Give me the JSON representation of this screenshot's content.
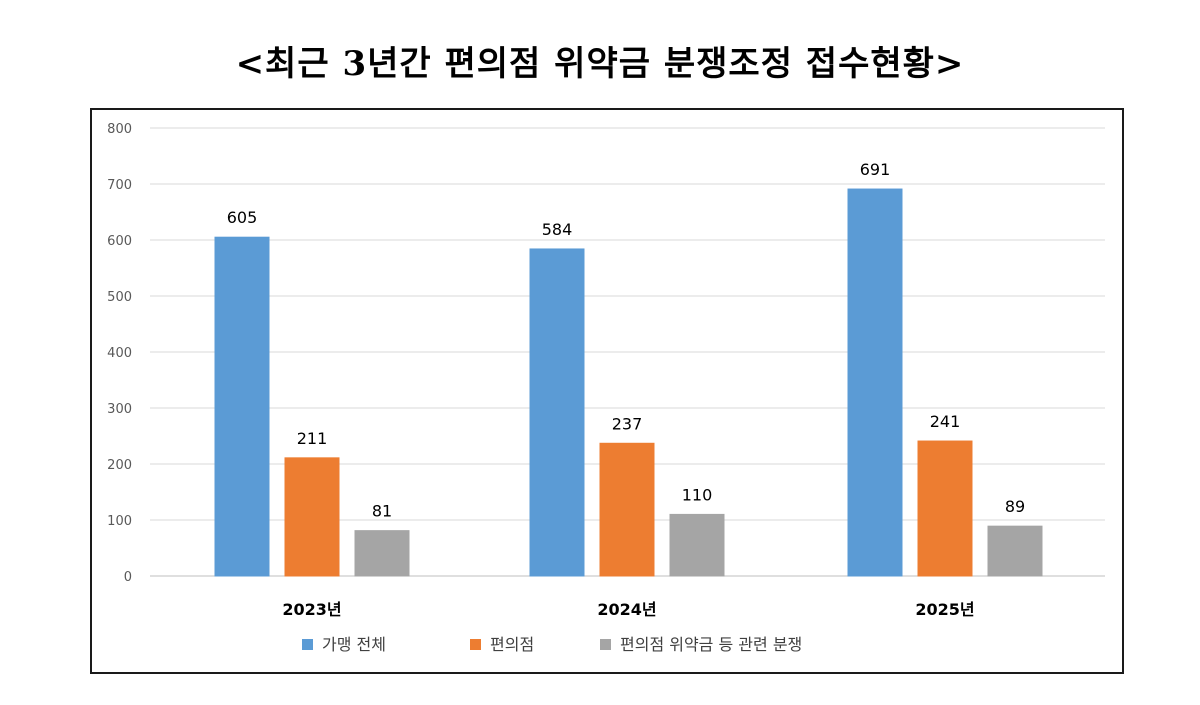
{
  "title": "<최근 3년간 편의점 위약금 분쟁조정 접수현황>",
  "chart_data": {
    "type": "bar",
    "categories": [
      "2023년",
      "2024년",
      "2025년"
    ],
    "series": [
      {
        "name": "가맹 전체",
        "values": [
          605,
          584,
          691
        ],
        "color": "#5b9bd5"
      },
      {
        "name": "편의점",
        "values": [
          211,
          237,
          241
        ],
        "color": "#ed7d31"
      },
      {
        "name": "편의점 위약금 등 관련 분쟁",
        "values": [
          81,
          110,
          89
        ],
        "color": "#a5a5a5"
      }
    ],
    "ylim": [
      0,
      800
    ],
    "yticks": [
      0,
      100,
      200,
      300,
      400,
      500,
      600,
      700,
      800
    ],
    "grid": true,
    "legend": "bottom",
    "data_labels": true
  }
}
